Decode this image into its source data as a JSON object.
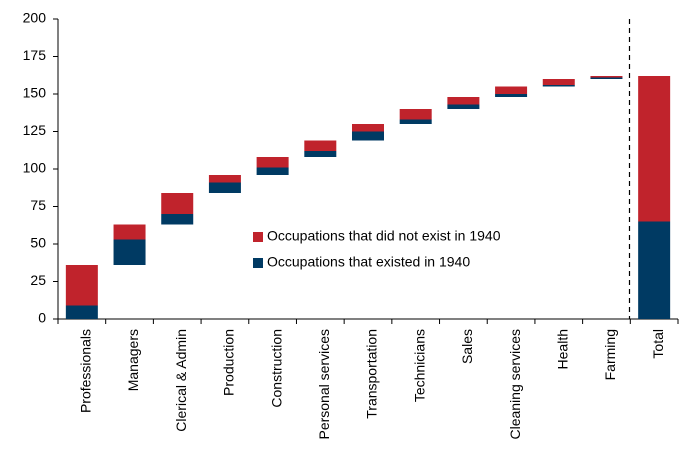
{
  "chart_data": {
    "type": "waterfall",
    "categories": [
      "Professionals",
      "Managers",
      "Clerical & Admin",
      "Production",
      "Construction",
      "Personal services",
      "Transportation",
      "Technicians",
      "Sales",
      "Cleaning services",
      "Health",
      "Farming",
      "Total"
    ],
    "series": [
      {
        "name": "Occupations that existed in 1940",
        "color": "#003a63",
        "values": [
          9,
          17,
          7,
          7,
          5,
          4,
          6,
          3,
          3,
          2,
          1,
          1,
          65
        ]
      },
      {
        "name": "Occupations that did not exist in 1940",
        "color": "#c0232c",
        "values": [
          27,
          10,
          14,
          5,
          7,
          7,
          5,
          7,
          5,
          5,
          4,
          1,
          97
        ]
      }
    ],
    "ylim": [
      0,
      200
    ],
    "yticks": [
      0,
      25,
      50,
      75,
      100,
      125,
      150,
      175,
      200
    ],
    "grid": false
  }
}
